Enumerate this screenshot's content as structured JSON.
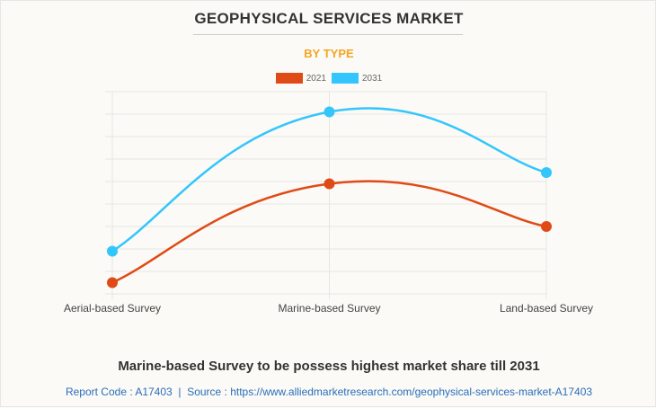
{
  "title": "GEOPHYSICAL SERVICES MARKET",
  "subtitle": "BY TYPE",
  "headline": "Marine-based Survey to be possess highest market share till 2031",
  "source": {
    "report_code": "Report Code : A17403",
    "separator": "|",
    "url_text": "Source : https://www.alliedmarketresearch.com/geophysical-services-market-A17403"
  },
  "chart_data": {
    "type": "line",
    "categories": [
      "Aerial-based Survey",
      "Marine-based Survey",
      "Land-based Survey"
    ],
    "series": [
      {
        "name": "2021",
        "color": "#e04a16",
        "values": [
          0.5,
          4.9,
          3.0
        ]
      },
      {
        "name": "2031",
        "color": "#33c6fc",
        "values": [
          1.9,
          8.1,
          5.4
        ]
      }
    ],
    "ylim": [
      0,
      9
    ],
    "y_tick_labels_shown": false,
    "grid": true,
    "legend": "top-center",
    "smooth": true
  }
}
